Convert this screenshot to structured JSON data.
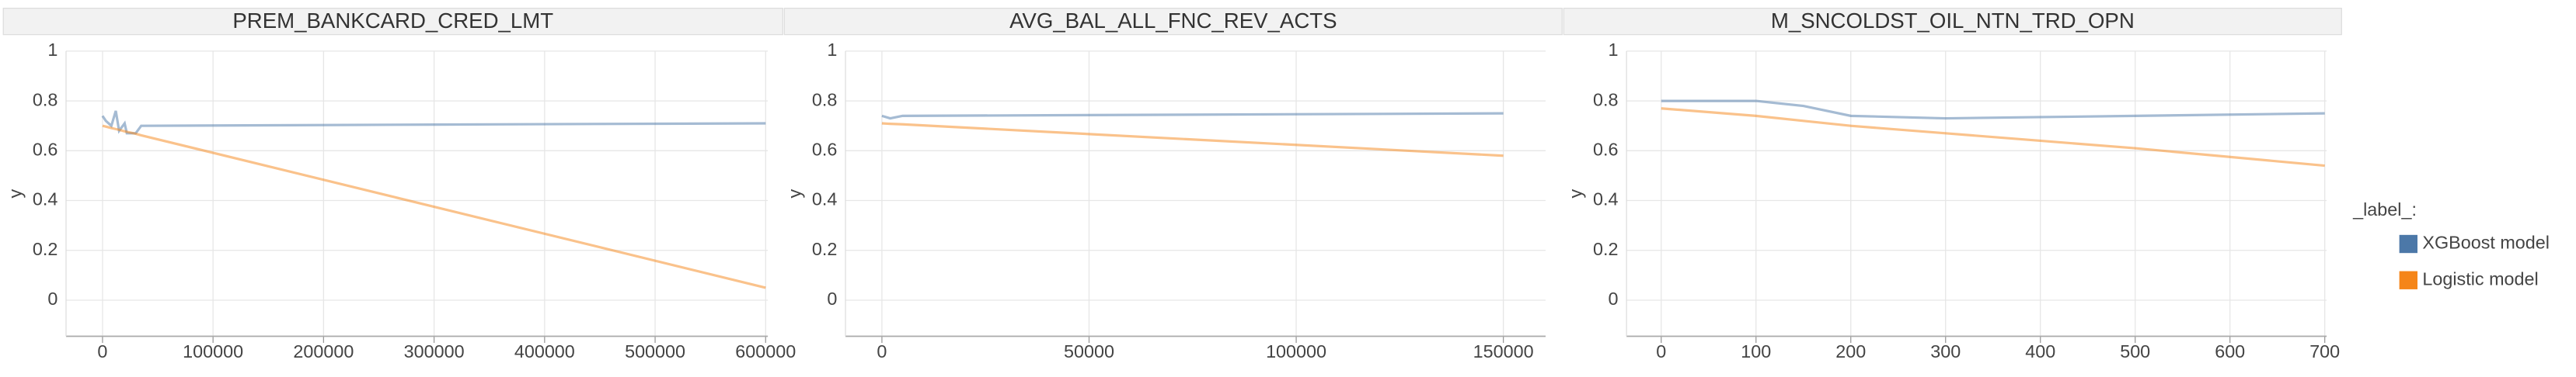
{
  "chart_data": [
    {
      "type": "line",
      "title": "PREM_BANKCARD_CRED_LMT",
      "y_label": "y",
      "x": [
        0,
        3000,
        8000,
        12000,
        15000,
        20000,
        22000,
        30000,
        35000,
        300000,
        600000
      ],
      "series": [
        {
          "name": "XGBoost model",
          "color": "#4c78a8",
          "values": [
            0.74,
            0.72,
            0.7,
            0.76,
            0.68,
            0.71,
            0.67,
            0.67,
            0.7,
            0.705,
            0.71
          ]
        },
        {
          "name": "Logistic model",
          "color": "#f58518",
          "values": [
            0.7,
            0.697,
            0.691,
            0.687,
            0.684,
            0.678,
            0.676,
            0.668,
            0.662,
            0.375,
            0.05
          ]
        }
      ],
      "xlim": [
        -33000,
        602000
      ],
      "xticks": [
        0,
        100000,
        200000,
        300000,
        400000,
        500000,
        600000
      ],
      "ylim": [
        -0.145,
        1
      ],
      "yticks": [
        0,
        0.2,
        0.4,
        0.6,
        0.8,
        1
      ],
      "grid": true
    },
    {
      "type": "line",
      "title": "AVG_BAL_ALL_FNC_REV_ACTS",
      "y_label": "y",
      "x": [
        0,
        2000,
        5000,
        150000
      ],
      "series": [
        {
          "name": "XGBoost model",
          "color": "#4c78a8",
          "values": [
            0.74,
            0.73,
            0.74,
            0.75
          ]
        },
        {
          "name": "Logistic model",
          "color": "#f58518",
          "values": [
            0.71,
            0.708,
            0.706,
            0.58
          ]
        }
      ],
      "xlim": [
        -8800,
        160200
      ],
      "xticks": [
        0,
        50000,
        100000,
        150000
      ],
      "ylim": [
        -0.145,
        1
      ],
      "yticks": [
        0,
        0.2,
        0.4,
        0.6,
        0.8,
        1
      ],
      "grid": true
    },
    {
      "type": "line",
      "title": "M_SNCOLDST_OIL_NTN_TRD_OPN",
      "y_label": "y",
      "x": [
        0,
        100,
        150,
        200,
        300,
        400,
        500,
        700
      ],
      "series": [
        {
          "name": "XGBoost model",
          "color": "#4c78a8",
          "values": [
            0.8,
            0.8,
            0.78,
            0.74,
            0.73,
            0.735,
            0.74,
            0.75
          ]
        },
        {
          "name": "Logistic model",
          "color": "#f58518",
          "values": [
            0.77,
            0.74,
            0.72,
            0.7,
            0.67,
            0.64,
            0.61,
            0.54
          ]
        }
      ],
      "xlim": [
        -36.6,
        702
      ],
      "xticks": [
        0,
        100,
        200,
        300,
        400,
        500,
        600,
        700
      ],
      "ylim": [
        -0.145,
        1
      ],
      "yticks": [
        0,
        0.2,
        0.4,
        0.6,
        0.8,
        1
      ],
      "grid": true,
      "legend": "right",
      "legend_title": "_label_:"
    }
  ]
}
